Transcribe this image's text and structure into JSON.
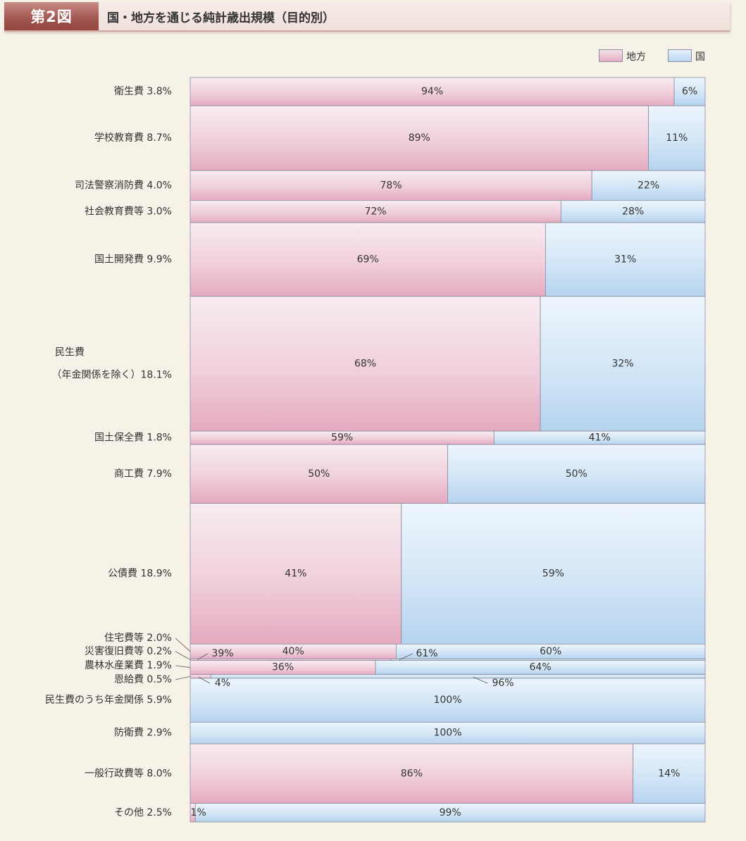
{
  "header": {
    "figure_label": "第2図",
    "title": "国・地方を通じる純計歳出規模（目的別）"
  },
  "legend": {
    "local": "地方",
    "national": "国"
  },
  "colors": {
    "local": "#ebbacb",
    "national": "#c2dcf3",
    "header_accent": "#a0544f",
    "background": "#f7f2e7"
  },
  "chart_data": {
    "type": "bar",
    "variant": "mekko-100-percent-stacked-horizontal",
    "title": "国・地方を通じる純計歳出規模（目的別）",
    "legend_position": "top-right",
    "series": [
      {
        "name": "地方",
        "key": "local"
      },
      {
        "name": "国",
        "key": "national"
      }
    ],
    "categories": [
      {
        "label": "衛生費 3.8%",
        "share": 3.8,
        "local": 94,
        "national": 6,
        "local_label": "94%",
        "national_label": "6%"
      },
      {
        "label": "学校教育費 8.7%",
        "share": 8.7,
        "local": 89,
        "national": 11,
        "local_label": "89%",
        "national_label": "11%"
      },
      {
        "label": "司法警察消防費 4.0%",
        "share": 4.0,
        "local": 78,
        "national": 22,
        "local_label": "78%",
        "national_label": "22%"
      },
      {
        "label": "社会教育費等 3.0%",
        "share": 3.0,
        "local": 72,
        "national": 28,
        "local_label": "72%",
        "national_label": "28%"
      },
      {
        "label": "国土開発費 9.9%",
        "share": 9.9,
        "local": 69,
        "national": 31,
        "local_label": "69%",
        "national_label": "31%"
      },
      {
        "label": "民生費",
        "label2": "（年金関係を除く）18.1%",
        "share": 18.1,
        "local": 68,
        "national": 32,
        "local_label": "68%",
        "national_label": "32%"
      },
      {
        "label": "国土保全費 1.8%",
        "share": 1.8,
        "local": 59,
        "national": 41,
        "local_label": "59%",
        "national_label": "41%"
      },
      {
        "label": "商工費 7.9%",
        "share": 7.9,
        "local": 50,
        "national": 50,
        "local_label": "50%",
        "national_label": "50%"
      },
      {
        "label": "公債費 18.9%",
        "share": 18.9,
        "local": 41,
        "national": 59,
        "local_label": "41%",
        "national_label": "59%"
      },
      {
        "label": "住宅費等 2.0%",
        "share": 2.0,
        "local": 40,
        "national": 60,
        "local_label": "40%",
        "national_label": "60%"
      },
      {
        "label": "災害復旧費等 0.2%",
        "share": 0.2,
        "local": 39,
        "national": 61,
        "local_label": "39%",
        "national_label": "61%"
      },
      {
        "label": "農林水産業費 1.9%",
        "share": 1.9,
        "local": 36,
        "national": 64,
        "local_label": "36%",
        "national_label": "64%"
      },
      {
        "label": "恩給費 0.5%",
        "share": 0.5,
        "local": 4,
        "national": 96,
        "local_label": "4%",
        "national_label": "96%"
      },
      {
        "label": "民生費のうち年金関係 5.9%",
        "share": 5.9,
        "local": 0,
        "national": 100,
        "local_label": "",
        "national_label": "100%"
      },
      {
        "label": "防衛費 2.9%",
        "share": 2.9,
        "local": 0,
        "national": 100,
        "local_label": "",
        "national_label": "100%"
      },
      {
        "label": "一般行政費等 8.0%",
        "share": 8.0,
        "local": 86,
        "national": 14,
        "local_label": "86%",
        "national_label": "14%"
      },
      {
        "label": "その他 2.5%",
        "share": 2.5,
        "local": 1,
        "national": 99,
        "local_label": "1%",
        "national_label": "99%"
      }
    ]
  }
}
